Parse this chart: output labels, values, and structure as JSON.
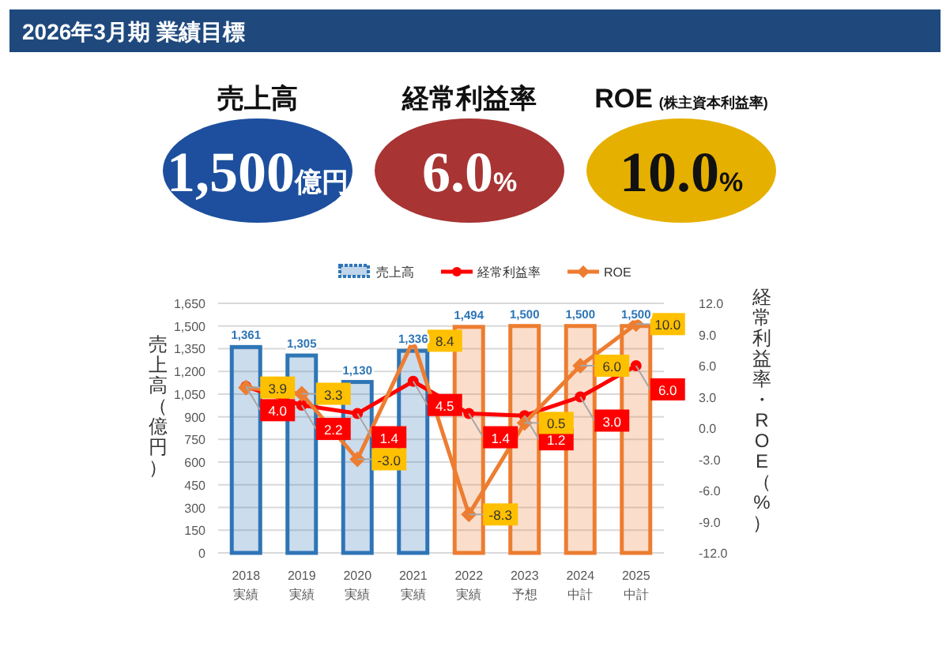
{
  "chart_data": [
    {
      "type": "other",
      "title": "2026年3月期 業績目標",
      "annotations": [
        "売上高",
        "1,500億円",
        "経常利益率",
        "6.0%",
        "ROE",
        "(株主資本利益率)",
        "10.0%"
      ],
      "colors": [
        "#1d4f9e",
        "#a83434",
        "#e6b000"
      ]
    },
    {
      "type": "bar",
      "categories": [
        "2018\n実績",
        "2019\n実績",
        "2020\n実績",
        "2021\n実績",
        "2022\n実績",
        "2023\n予想",
        "2024\n中計",
        "2025\n中計"
      ],
      "ylabel": "売上高（億円）",
      "y2label": "経常利益率・ROE（%）",
      "ylim": [
        0,
        1650
      ],
      "yticks": [
        0,
        150,
        300,
        450,
        600,
        750,
        900,
        {
          "value": 1050,
          "label": "1,050"
        },
        {
          "value": 1200,
          "label": "1,200"
        },
        {
          "value": 1350,
          "label": "1,350"
        },
        {
          "value": 1500,
          "label": "1,500"
        },
        {
          "value": 1650,
          "label": "1,650"
        }
      ],
      "y2lim": [
        -12,
        12
      ],
      "y2ticks": [
        {
          "value": -12,
          "label": "-12.0"
        },
        {
          "value": -9,
          "label": "-9.0"
        },
        {
          "value": -6,
          "label": "-6.0"
        },
        {
          "value": -3,
          "label": "-3.0"
        },
        {
          "value": 0,
          "label": "0.0"
        },
        {
          "value": 3,
          "label": "3.0"
        },
        {
          "value": 6,
          "label": "6.0"
        },
        {
          "value": 9,
          "label": "9.0"
        },
        {
          "value": 12,
          "label": "12.0"
        }
      ],
      "grid": "y",
      "legend": "top",
      "series": [
        {
          "name": "売上高",
          "type": "bar",
          "color": "#2e75b6",
          "colors": [
            "#2e75b6",
            "#2e75b6",
            "#2e75b6",
            "#2e75b6",
            "#ed7d31",
            "#ed7d31",
            "#ed7d31",
            "#ed7d31"
          ],
          "values": [
            1361,
            1305,
            1130,
            1336,
            1494,
            1500,
            1500,
            1500
          ],
          "value_labels": [
            "1,361",
            "1,305",
            "1,130",
            "1,336",
            "1,494",
            "1,500",
            "1,500",
            "1,500"
          ]
        },
        {
          "name": "経常利益率",
          "type": "line",
          "axis": "y2",
          "color": "#ff0000",
          "marker": "circle",
          "values": [
            4.0,
            2.2,
            1.4,
            4.5,
            1.4,
            1.2,
            3.0,
            6.0
          ],
          "value_labels": [
            "4.0",
            "2.2",
            "1.4",
            "4.5",
            "1.4",
            "1.2",
            "3.0",
            "6.0"
          ]
        },
        {
          "name": "ROE",
          "type": "line",
          "axis": "y2",
          "color": "#ed7d31",
          "marker": "diamond",
          "values": [
            3.9,
            3.3,
            -3.0,
            8.4,
            -8.3,
            0.5,
            6.0,
            10.0
          ],
          "value_labels": [
            "3.9",
            "3.3",
            "-3.0",
            "8.4",
            "-8.3",
            "0.5",
            "6.0",
            "10.0"
          ]
        }
      ]
    }
  ]
}
